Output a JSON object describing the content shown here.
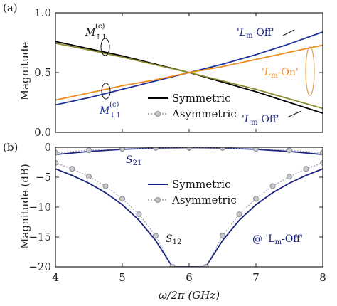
{
  "chart_data": [
    {
      "type": "line",
      "panel_label": "(a)",
      "ylabel": "Magnitude",
      "xlim": [
        4,
        8
      ],
      "ylim": [
        0,
        1
      ],
      "x_ticks": [
        "4",
        "5",
        "6",
        "7",
        "8"
      ],
      "y_ticks": [
        "0.0",
        "0.5",
        "1.0"
      ],
      "legend": {
        "placement": "bottom-center",
        "entries": [
          "Symmetric",
          "Asymmetric"
        ]
      },
      "annotations": {
        "m_upup": "M",
        "m_upup_sup": "(c)",
        "m_upup_sub": "↑↑",
        "m_downup": "M",
        "m_downup_sup": "(c)",
        "m_downup_sub": "↓↑",
        "lm_off_top": "'L",
        "lm_off_top_sub": "m",
        "lm_off_top_tail": "-Off'",
        "lm_on": "'L",
        "lm_on_sub": "m",
        "lm_on_tail": "-On'",
        "lm_off_bottom": "'L",
        "lm_off_bottom_sub": "m",
        "lm_off_bottom_tail": "-Off'"
      },
      "series": [
        {
          "name": "M↑↑ 'Lm-Off' Symmetric",
          "color": "#000000",
          "style": "solid",
          "x": [
            4,
            4.5,
            5,
            5.5,
            6,
            6.5,
            7,
            7.5,
            8
          ],
          "y": [
            0.76,
            0.7,
            0.64,
            0.57,
            0.5,
            0.42,
            0.34,
            0.25,
            0.16
          ]
        },
        {
          "name": "M↓↑ 'Lm-Off' Symmetric",
          "color": "#1f2f9c",
          "style": "solid",
          "x": [
            4,
            4.5,
            5,
            5.5,
            6,
            6.5,
            7,
            7.5,
            8
          ],
          "y": [
            0.23,
            0.29,
            0.36,
            0.43,
            0.5,
            0.57,
            0.65,
            0.74,
            0.84
          ]
        },
        {
          "name": "M↑↑ 'Lm-On'",
          "color": "#8a8a30",
          "style": "solid",
          "x": [
            4,
            4.5,
            5,
            5.5,
            6,
            6.5,
            7,
            7.5,
            8
          ],
          "y": [
            0.745,
            0.69,
            0.63,
            0.565,
            0.5,
            0.43,
            0.36,
            0.28,
            0.2
          ]
        },
        {
          "name": "M↓↑ 'Lm-On'",
          "color": "#f08c1e",
          "style": "solid",
          "x": [
            4,
            4.5,
            5,
            5.5,
            6,
            6.5,
            7,
            7.5,
            8
          ],
          "y": [
            0.27,
            0.33,
            0.39,
            0.44,
            0.5,
            0.55,
            0.61,
            0.67,
            0.73
          ]
        }
      ]
    },
    {
      "type": "line",
      "panel_label": "(b)",
      "xlabel": "ω/2π (GHz)",
      "ylabel": "Magnitude (dB)",
      "xlim": [
        4,
        8
      ],
      "ylim": [
        -20,
        0
      ],
      "x_ticks": [
        "4",
        "5",
        "6",
        "7",
        "8"
      ],
      "y_ticks": [
        "0",
        "−5",
        "−10",
        "−15",
        "−20"
      ],
      "legend": {
        "placement": "center",
        "entries": [
          "Symmetric",
          "Asymmetric"
        ]
      },
      "annotations": {
        "s21": "S",
        "s21_sub": "21",
        "s12": "S",
        "s12_sub": "12",
        "at_lm_off": "@ 'L",
        "at_lm_off_sub": "m",
        "at_lm_off_tail": "-Off'"
      },
      "series": [
        {
          "name": "S21 Symmetric",
          "color": "#1a237e",
          "style": "solid",
          "x": [
            4,
            4.5,
            5,
            5.5,
            6,
            6.5,
            7,
            7.5,
            8
          ],
          "y": [
            -1.2,
            -0.7,
            -0.35,
            -0.12,
            -0.05,
            -0.12,
            -0.35,
            -0.7,
            -1.2
          ]
        },
        {
          "name": "S12 Symmetric",
          "color": "#1a237e",
          "style": "solid",
          "x": [
            4,
            4.25,
            4.5,
            4.75,
            5,
            5.25,
            5.5,
            5.75,
            6.25,
            6.5,
            6.75,
            7,
            7.25,
            7.5,
            7.75,
            8
          ],
          "y": [
            -3.6,
            -4.7,
            -6.0,
            -7.6,
            -9.6,
            -12.2,
            -15.6,
            -20,
            -20,
            -15.6,
            -12.2,
            -9.6,
            -7.6,
            -6.0,
            -4.7,
            -3.6
          ]
        },
        {
          "name": "S21 Asymmetric",
          "color": "#9a9aa8",
          "style": "dotted-markers",
          "x": [
            4,
            4.5,
            5,
            5.5,
            6,
            6.5,
            7,
            7.5,
            8
          ],
          "y": [
            -0.9,
            -0.5,
            -0.25,
            -0.1,
            -0.05,
            -0.1,
            -0.25,
            -0.5,
            -0.9
          ]
        },
        {
          "name": "S12 Asymmetric",
          "color": "#9a9aa8",
          "style": "dotted-markers",
          "x": [
            4,
            4.25,
            4.5,
            4.75,
            5,
            5.25,
            5.5,
            5.75,
            6.25,
            6.5,
            6.75,
            7,
            7.25,
            7.5,
            7.75,
            8
          ],
          "y": [
            -2.6,
            -3.6,
            -4.9,
            -6.5,
            -8.6,
            -11.2,
            -14.8,
            -20,
            -20,
            -14.8,
            -11.2,
            -8.6,
            -6.5,
            -4.9,
            -3.6,
            -2.6
          ]
        }
      ]
    }
  ]
}
